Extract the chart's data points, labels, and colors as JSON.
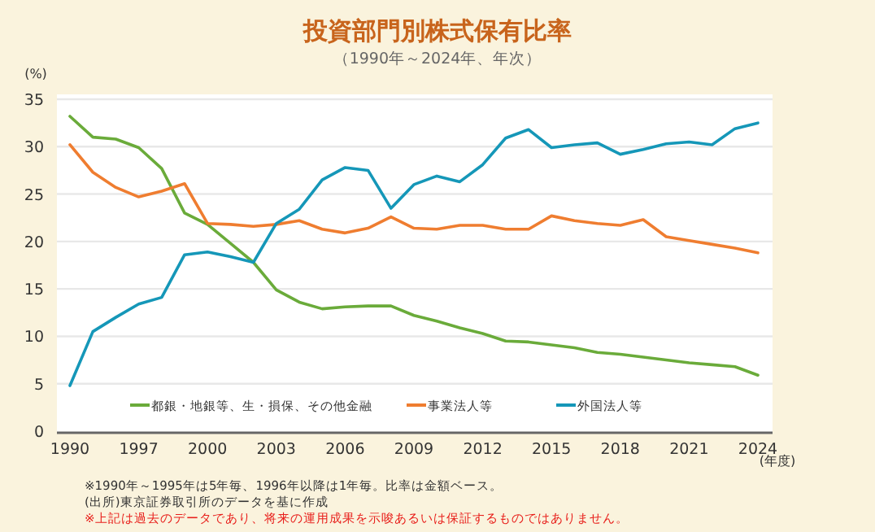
{
  "chart_data": {
    "type": "line",
    "title": "投資部門別株式保有比率",
    "subtitle": "（1990年～2024年、年次）",
    "ylabel": "(%)",
    "xlabel": "(年度)",
    "categories": [
      "1990",
      null,
      null,
      "1997",
      null,
      null,
      "2000",
      null,
      null,
      "2003",
      null,
      null,
      "2006",
      null,
      null,
      "2009",
      null,
      null,
      "2012",
      null,
      null,
      "2015",
      null,
      null,
      "2018",
      null,
      null,
      "2021",
      null,
      null,
      "2024"
    ],
    "series": [
      {
        "name": "都銀・地銀等、生・損保、その他金融",
        "color": "#6aab3a",
        "values": [
          33.2,
          31.0,
          30.8,
          29.9,
          27.7,
          23.0,
          21.8,
          19.8,
          17.8,
          14.9,
          13.6,
          12.9,
          13.1,
          13.2,
          13.2,
          12.2,
          11.6,
          10.9,
          10.3,
          9.5,
          9.4,
          9.1,
          8.8,
          8.3,
          8.1,
          7.8,
          7.5,
          7.2,
          7.0,
          6.8,
          5.9
        ]
      },
      {
        "name": "事業法人等",
        "color": "#ef7d30",
        "values": [
          30.2,
          27.3,
          25.7,
          24.7,
          25.3,
          26.1,
          21.9,
          21.8,
          21.6,
          21.8,
          22.2,
          21.3,
          20.9,
          21.4,
          22.6,
          21.4,
          21.3,
          21.7,
          21.7,
          21.3,
          21.3,
          22.7,
          22.2,
          21.9,
          21.7,
          22.3,
          20.5,
          20.1,
          19.7,
          19.3,
          18.8
        ]
      },
      {
        "name": "外国法人等",
        "color": "#1597b8",
        "values": [
          4.8,
          10.5,
          12.0,
          13.4,
          14.1,
          18.6,
          18.9,
          18.4,
          17.8,
          21.9,
          23.4,
          26.5,
          27.8,
          27.5,
          23.5,
          26.0,
          26.9,
          26.3,
          28.1,
          30.9,
          31.8,
          29.9,
          30.2,
          30.4,
          29.2,
          29.7,
          30.3,
          30.5,
          30.2,
          31.9,
          32.5
        ]
      }
    ],
    "ylim": [
      0,
      35
    ],
    "yticks": [
      0,
      5,
      10,
      15,
      20,
      25,
      30,
      35
    ],
    "grid": "y",
    "legend": "bottom",
    "marker": "none",
    "line_style": "solid",
    "annotations": [
      "※1990年～1995年は5年毎、1996年以降は1年毎。比率は金額ベース。",
      "(出所)東京証券取引所のデータを基に作成",
      "※上記は過去のデータであり、将来の運用成果を示唆あるいは保証するものではありません。"
    ]
  }
}
